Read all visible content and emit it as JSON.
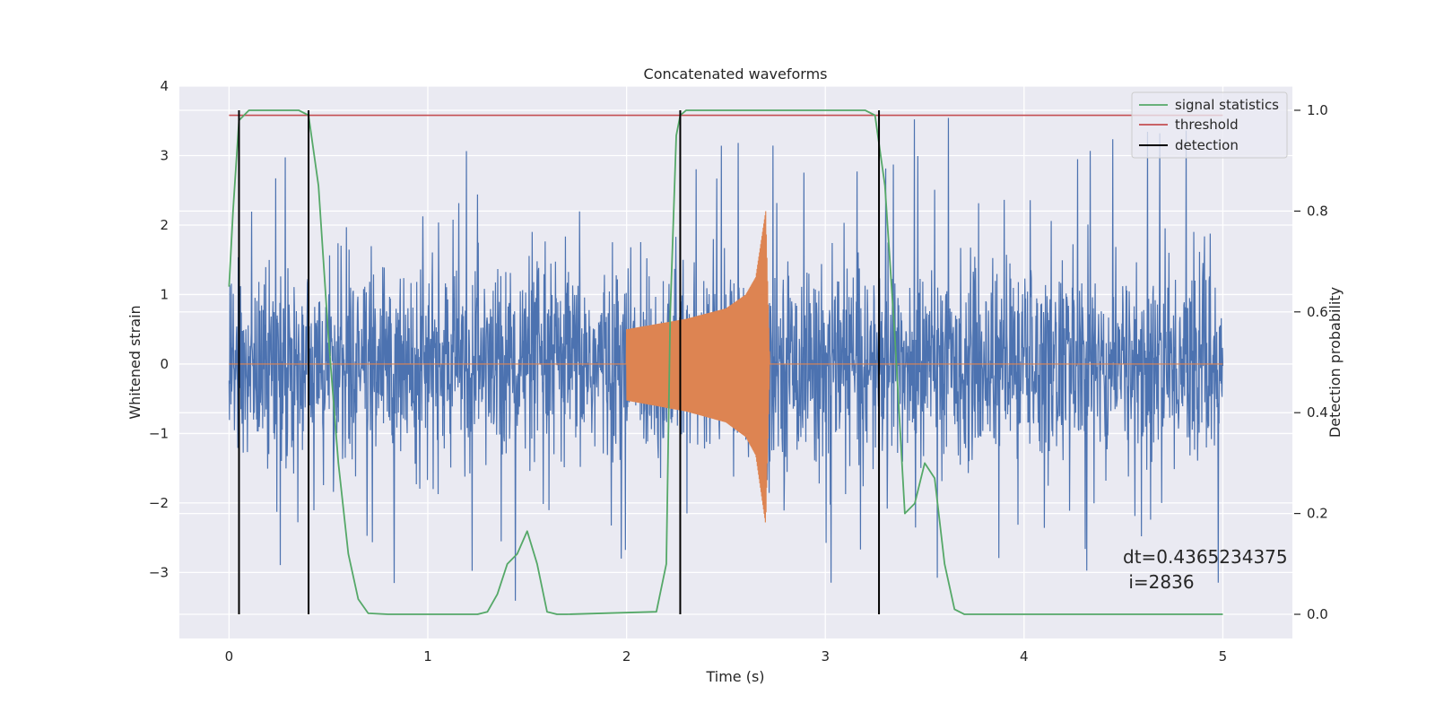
{
  "chart_data": {
    "type": "line",
    "title": "Concatenated waveforms",
    "xlabel": "Time (s)",
    "ylabel": "Whitened strain",
    "y2label": "Detection probability",
    "xlim": [
      -0.25,
      5.35
    ],
    "ylim": [
      -3.95,
      4.0
    ],
    "y2lim": [
      -0.048,
      1.048
    ],
    "xticks": [
      0,
      1,
      2,
      3,
      4,
      5
    ],
    "xtick_labels": [
      "0",
      "1",
      "2",
      "3",
      "4",
      "5"
    ],
    "yticks": [
      -3,
      -2,
      -1,
      0,
      1,
      2,
      3,
      4
    ],
    "ytick_labels": [
      "−3",
      "−2",
      "−1",
      "0",
      "1",
      "2",
      "3",
      "4"
    ],
    "y2ticks": [
      0.0,
      0.2,
      0.4,
      0.6,
      0.8,
      1.0
    ],
    "y2tick_labels": [
      "0.0",
      "0.2",
      "0.4",
      "0.6",
      "0.8",
      "1.0"
    ],
    "grid": true,
    "legend_position": "top-right",
    "legend": [
      {
        "label": "signal statistics",
        "color": "#55a868"
      },
      {
        "label": "threshold",
        "color": "#c44e52"
      },
      {
        "label": "detection",
        "color": "#000000"
      }
    ],
    "colors": {
      "strain": "#4c72b0",
      "template": "#dd8452",
      "signal_statistics": "#55a868",
      "threshold": "#c44e52",
      "detection": "#000000",
      "background": "#eaeaf2",
      "grid": "#ffffff"
    },
    "strain": {
      "x_range": [
        0,
        5
      ],
      "typical_abs": 0.7,
      "peak_abs": 3.6
    },
    "template": {
      "x": [
        2.0,
        2.3,
        2.5,
        2.6,
        2.65,
        2.7,
        2.72
      ],
      "amplitude": [
        0.5,
        0.65,
        0.8,
        1.0,
        1.25,
        2.2,
        0.05
      ]
    },
    "signal_statistics": {
      "x": [
        0.0,
        0.02,
        0.05,
        0.1,
        0.35,
        0.4,
        0.45,
        0.5,
        0.55,
        0.6,
        0.65,
        0.7,
        0.8,
        1.25,
        1.3,
        1.35,
        1.4,
        1.45,
        1.5,
        1.55,
        1.6,
        1.65,
        1.7,
        2.15,
        2.2,
        2.22,
        2.25,
        2.27,
        2.3,
        2.4,
        3.2,
        3.25,
        3.3,
        3.35,
        3.4,
        3.45,
        3.5,
        3.55,
        3.6,
        3.65,
        3.7,
        4.0,
        5.0
      ],
      "y": [
        0.65,
        0.8,
        0.98,
        1.0,
        1.0,
        0.99,
        0.85,
        0.55,
        0.3,
        0.12,
        0.03,
        0.002,
        0.0,
        0.0,
        0.005,
        0.04,
        0.1,
        0.12,
        0.165,
        0.1,
        0.005,
        0.0,
        0.0,
        0.005,
        0.1,
        0.6,
        0.95,
        0.99,
        1.0,
        1.0,
        1.0,
        0.99,
        0.85,
        0.55,
        0.2,
        0.22,
        0.3,
        0.27,
        0.1,
        0.01,
        0.0,
        0.0,
        0.0
      ]
    },
    "threshold": {
      "value": 0.99,
      "x_range": [
        0,
        5
      ]
    },
    "detections": [
      0.05,
      0.4,
      2.27,
      3.27
    ],
    "annotation": {
      "line1": "dt=0.4365234375",
      "line2": " i=2836",
      "x": 4.5,
      "y": -3.0
    }
  }
}
